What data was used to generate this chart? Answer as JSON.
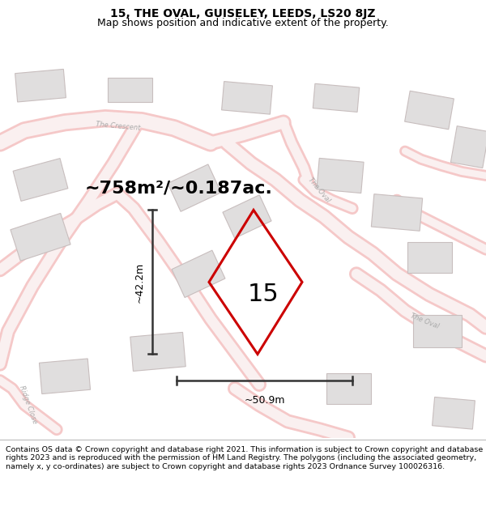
{
  "title_line1": "15, THE OVAL, GUISELEY, LEEDS, LS20 8JZ",
  "title_line2": "Map shows position and indicative extent of the property.",
  "footer_text": "Contains OS data © Crown copyright and database right 2021. This information is subject to Crown copyright and database rights 2023 and is reproduced with the permission of HM Land Registry. The polygons (including the associated geometry, namely x, y co-ordinates) are subject to Crown copyright and database rights 2023 Ordnance Survey 100026316.",
  "area_label": "~758m²/~0.187ac.",
  "number_label": "15",
  "dim_vertical": "~42.2m",
  "dim_horizontal": "~50.9m",
  "map_bg": "#f9f6f6",
  "road_color": "#f5c8c8",
  "road_fill": "#faf0f0",
  "building_fill": "#e0dede",
  "building_outline": "#c8bebe",
  "plot_color": "#cc0000",
  "street_label_color": "#aaaaaa",
  "dim_color": "#333333",
  "title_fontsize": 10,
  "subtitle_fontsize": 9,
  "footer_fontsize": 6.8,
  "area_fontsize": 16,
  "number_fontsize": 22,
  "dim_fontsize": 9,
  "street_fontsize": 6
}
